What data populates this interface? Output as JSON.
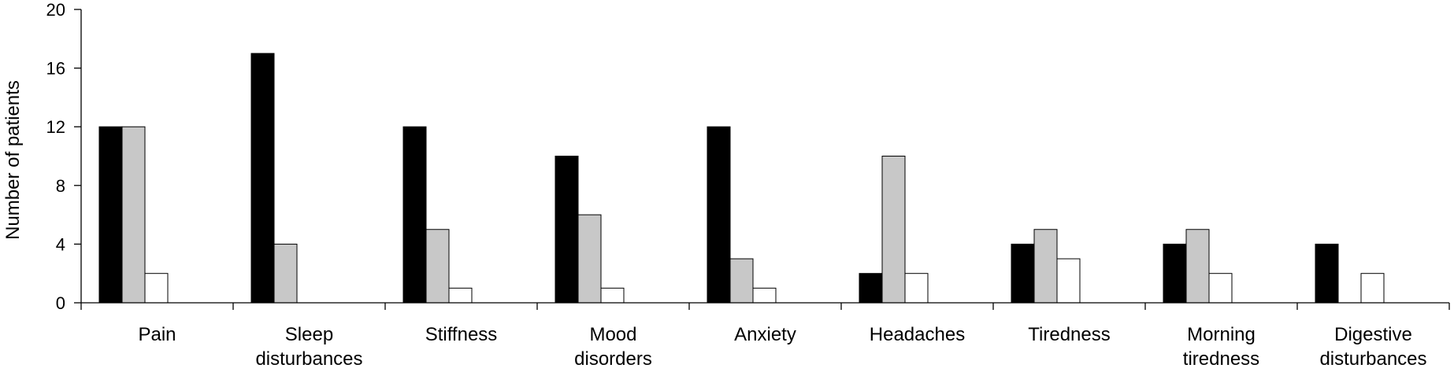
{
  "chart_data": {
    "type": "bar",
    "ylabel": "Number of patients",
    "xlabel": "",
    "ylim": [
      0,
      20
    ],
    "yticks": [
      "0",
      "4",
      "8",
      "12",
      "16",
      "20"
    ],
    "ytick_values": [
      0,
      4,
      8,
      12,
      16,
      20
    ],
    "grid": false,
    "legend": "none",
    "categories": [
      [
        "Pain"
      ],
      [
        "Sleep",
        "disturbances"
      ],
      [
        "Stiffness"
      ],
      [
        "Mood",
        "disorders"
      ],
      [
        "Anxiety"
      ],
      [
        "Headaches"
      ],
      [
        "Tiredness"
      ],
      [
        "Morning",
        "tiredness"
      ],
      [
        "Digestive",
        "disturbances"
      ]
    ],
    "series": [
      {
        "color": "#000000",
        "values": [
          12,
          17,
          12,
          10,
          12,
          2,
          4,
          4,
          4
        ]
      },
      {
        "color": "#c8c8c8",
        "values": [
          12,
          4,
          5,
          6,
          3,
          10,
          5,
          5,
          0
        ]
      },
      {
        "color": "#ffffff",
        "values": [
          2,
          0,
          1,
          1,
          1,
          2,
          3,
          2,
          2
        ]
      }
    ]
  }
}
